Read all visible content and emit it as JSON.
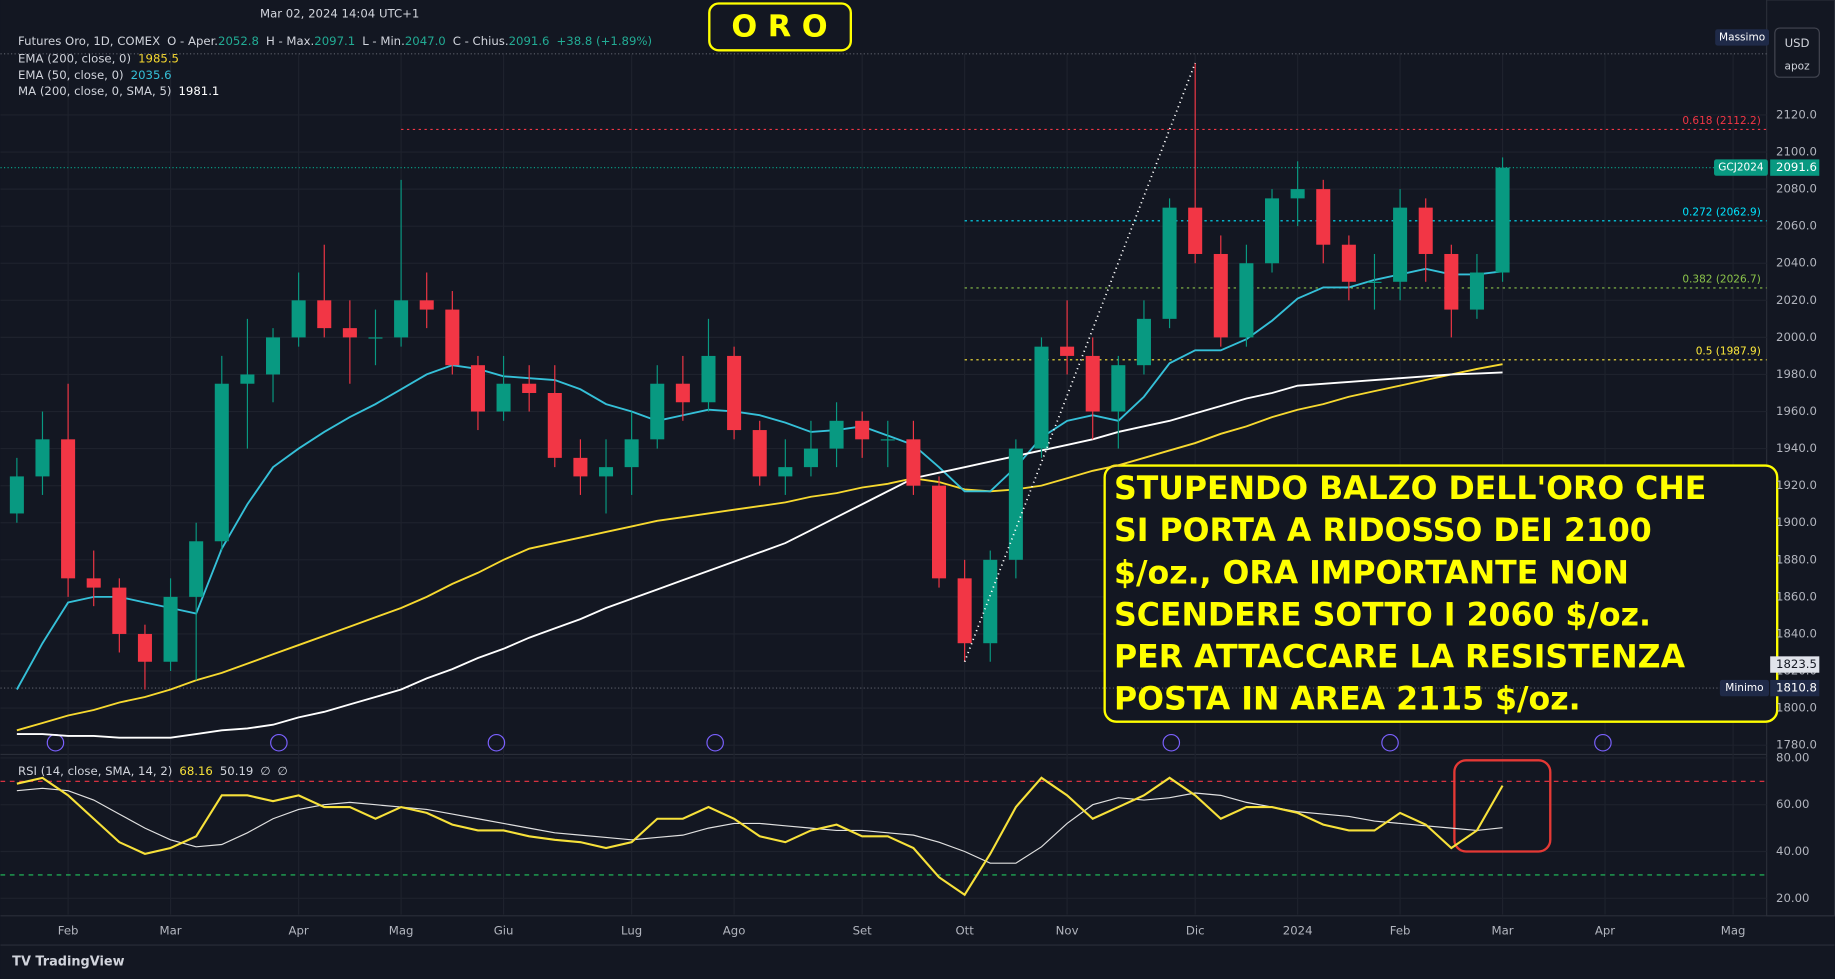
{
  "header": {
    "datetime": "Mar 02, 2024 14:04 UTC+1",
    "symbol": "Futures Oro, 1D, COMEX",
    "o_label": "O - Aper.",
    "open_value": "2052.8",
    "h_label": "H - Max.",
    "high_value": "2097.1",
    "l_label": "L - Min.",
    "low_value": "2047.0",
    "c_label": "C - Chius.",
    "close_value": "2091.6",
    "change": "+38.8 (+1.89%)",
    "currency": "USD",
    "user": "apoz",
    "brand": "TradingView"
  },
  "chart_data": [
    {
      "type": "candlestick",
      "title": "O R O",
      "categories": [
        null,
        null,
        "Feb",
        null,
        null,
        null,
        "Mar",
        null,
        null,
        null,
        null,
        "Apr",
        null,
        null,
        null,
        "Mag",
        null,
        null,
        null,
        "Giu",
        null,
        null,
        null,
        null,
        "Lug",
        null,
        null,
        null,
        "Ago",
        null,
        null,
        null,
        null,
        "Set",
        null,
        null,
        null,
        "Ott",
        null,
        null,
        null,
        "Nov",
        null,
        null,
        null,
        null,
        "Dic",
        null,
        null,
        null,
        "2024",
        null,
        null,
        null,
        "Feb",
        null,
        null,
        null,
        "Mar",
        null,
        null,
        null,
        "Apr",
        null,
        null,
        null,
        null,
        "Mag",
        null
      ],
      "open": [
        1905,
        1925,
        1945,
        1870,
        1865,
        1840,
        1825,
        1860,
        1890,
        1975,
        1980,
        2000,
        2020,
        2005,
        2000,
        2000,
        2020,
        2015,
        1985,
        1960,
        1975,
        1970,
        1935,
        1925,
        1930,
        1945,
        1975,
        1965,
        1990,
        1950,
        1925,
        1930,
        1940,
        1955,
        1945,
        1945,
        1920,
        1870,
        1835,
        1880,
        1940,
        1995,
        1990,
        1960,
        1985,
        2010,
        2070,
        2045,
        2000,
        2040,
        2075,
        2080,
        2050,
        2030,
        2030,
        2070,
        2045,
        2015,
        2035,
        null,
        null,
        null,
        null,
        null,
        null,
        null,
        null,
        null,
        null
      ],
      "high": [
        1935,
        1960,
        1975,
        1885,
        1870,
        1845,
        1870,
        1900,
        1990,
        2010,
        2005,
        2035,
        2050,
        2020,
        2015,
        2085,
        2035,
        2025,
        1990,
        1990,
        1985,
        1985,
        1945,
        1945,
        1960,
        1985,
        1990,
        2010,
        1995,
        1955,
        1945,
        1955,
        1965,
        1960,
        1955,
        1955,
        1925,
        1880,
        1885,
        1945,
        2000,
        2020,
        2000,
        1990,
        2020,
        2075,
        2148,
        2055,
        2050,
        2080,
        2095,
        2085,
        2055,
        2045,
        2080,
        2075,
        2050,
        2045,
        2097.1,
        null,
        null,
        null,
        null,
        null,
        null,
        null,
        null,
        null,
        null
      ],
      "low": [
        1900,
        1915,
        1860,
        1855,
        1830,
        1810,
        1820,
        1815,
        1885,
        1940,
        1965,
        1995,
        2000,
        1975,
        1985,
        1995,
        2005,
        1980,
        1950,
        1955,
        1960,
        1930,
        1915,
        1905,
        1915,
        1940,
        1955,
        1960,
        1945,
        1920,
        1915,
        1925,
        1930,
        1935,
        1930,
        1915,
        1865,
        1825,
        1825,
        1870,
        1935,
        1980,
        1945,
        1940,
        1980,
        2005,
        2040,
        1995,
        1995,
        2035,
        2060,
        2040,
        2020,
        2015,
        2020,
        2030,
        2000,
        2010,
        2030,
        null,
        null,
        null,
        null,
        null,
        null,
        null,
        null,
        null,
        null
      ],
      "close": [
        1925,
        1945,
        1870,
        1865,
        1840,
        1825,
        1860,
        1890,
        1975,
        1980,
        2000,
        2020,
        2005,
        2000,
        2000,
        2020,
        2015,
        1985,
        1960,
        1975,
        1970,
        1935,
        1925,
        1930,
        1945,
        1975,
        1965,
        1990,
        1950,
        1925,
        1930,
        1940,
        1955,
        1945,
        1945,
        1920,
        1870,
        1835,
        1880,
        1940,
        1995,
        1990,
        1960,
        1985,
        2010,
        2070,
        2045,
        2000,
        2040,
        2075,
        2080,
        2050,
        2030,
        2030,
        2070,
        2045,
        2015,
        2035,
        2091.6,
        null,
        null,
        null,
        null,
        null,
        null,
        null,
        null,
        null,
        null
      ],
      "up_color": "#089981",
      "down_color": "#f23645",
      "series": [
        {
          "name": "EMA (200, close, 0)",
          "last": "1985.5",
          "color": "#f7d92f",
          "values": [
            1788,
            1792,
            1796,
            1799,
            1803,
            1806,
            1810,
            1815,
            1819,
            1824,
            1829,
            1834,
            1839,
            1844,
            1849,
            1854,
            1860,
            1867,
            1873,
            1880,
            1886,
            1889,
            1892,
            1895,
            1898,
            1901,
            1903,
            1905,
            1907,
            1909,
            1911,
            1914,
            1916,
            1919,
            1921,
            1924,
            1922,
            1918,
            1917,
            1918,
            1920,
            1924,
            1928,
            1931,
            1935,
            1939,
            1943,
            1948,
            1952,
            1957,
            1961,
            1964,
            1968,
            1971,
            1974,
            1977,
            1980,
            1983,
            1985.5,
            null,
            null,
            null,
            null,
            null,
            null,
            null,
            null,
            null,
            null
          ]
        },
        {
          "name": "EMA (50, close, 0)",
          "last": "2035.6",
          "color": "#35c0d8",
          "values": [
            1810,
            1835,
            1857,
            1860,
            1860,
            1857,
            1854,
            1851,
            1886,
            1910,
            1930,
            1940,
            1949,
            1957,
            1964,
            1972,
            1980,
            1985,
            1983,
            1979,
            1978,
            1977,
            1972,
            1964,
            1960,
            1955,
            1958,
            1961,
            1960,
            1958,
            1954,
            1949,
            1950,
            1952,
            1947,
            1942,
            1930,
            1917,
            1917,
            1930,
            1946,
            1955,
            1958,
            1955,
            1968,
            1986,
            1993,
            1993,
            1999,
            2009,
            2021,
            2027,
            2027,
            2031,
            2034,
            2037,
            2034,
            2034,
            2035.6,
            null,
            null,
            null,
            null,
            null,
            null,
            null,
            null,
            null,
            null
          ]
        },
        {
          "name": "MA (200, close, 0, SMA, 5)",
          "last": "1981.1",
          "color": "#ffffff",
          "values": [
            1786,
            1786,
            1785,
            1785,
            1784,
            1784,
            1784,
            1786,
            1788,
            1789,
            1791,
            1795,
            1798,
            1802,
            1806,
            1810,
            1816,
            1821,
            1827,
            1832,
            1838,
            1843,
            1848,
            1854,
            1859,
            1864,
            1869,
            1874,
            1879,
            1884,
            1889,
            1896,
            1903,
            1910,
            1917,
            1924,
            1927,
            1930,
            1933,
            1936,
            1939,
            1942,
            1945,
            1949,
            1952,
            1955,
            1959,
            1963,
            1967,
            1970,
            1974,
            1975,
            1976,
            1977,
            1978,
            1979,
            1980,
            1980.5,
            1981.1,
            null,
            null,
            null,
            null,
            null,
            null,
            null,
            null,
            null,
            null
          ]
        }
      ],
      "ylim": [
        1775,
        2153
      ],
      "yticks": [
        {
          "value": 1780,
          "label": "1780.0"
        },
        {
          "value": 1800,
          "label": "1800.0"
        },
        {
          "value": 1820,
          "label": "1820.0"
        },
        {
          "value": 1840,
          "label": "1840.0"
        },
        {
          "value": 1860,
          "label": "1860.0"
        },
        {
          "value": 1880,
          "label": "1880.0"
        },
        {
          "value": 1900,
          "label": "1900.0"
        },
        {
          "value": 1920,
          "label": "1920.0"
        },
        {
          "value": 1940,
          "label": "1940.0"
        },
        {
          "value": 1960,
          "label": "1960.0"
        },
        {
          "value": 1980,
          "label": "1980.0"
        },
        {
          "value": 2000,
          "label": "2000.0"
        },
        {
          "value": 2020,
          "label": "2020.0"
        },
        {
          "value": 2040,
          "label": "2040.0"
        },
        {
          "value": 2060,
          "label": "2060.0"
        },
        {
          "value": 2080,
          "label": "2080.0"
        },
        {
          "value": 2100,
          "label": "2100.0"
        },
        {
          "value": 2120,
          "label": "2120.0"
        }
      ],
      "fib_levels": [
        {
          "label": "0.618 (2112.2)",
          "value": 2112.2,
          "color": "#f23645"
        },
        {
          "label": "0.272 (2062.9)",
          "value": 2062.9,
          "color": "#00e5ff"
        },
        {
          "label": "0.382 (2026.7)",
          "value": 2026.7,
          "color": "#8bc34a"
        },
        {
          "label": "0.5 (1987.9)",
          "value": 1987.9,
          "color": "#ffeb3b"
        }
      ],
      "price_tags": {
        "max_label": "Massimo",
        "min_label": "Minimo",
        "min_value": {
          "value": 1810.8,
          "label": "1810.8"
        },
        "symbol": "GCJ2024",
        "last": {
          "value": 2091.6,
          "label": "2091.6"
        },
        "cursor": {
          "value": 1823.5,
          "label": "1823.5"
        }
      },
      "annotation_lines": [
        "STUPENDO BALZO DELL'ORO CHE",
        "SI PORTA A RIDOSSO DEI 2100",
        "$/oz., ORA IMPORTANTE NON",
        "SCENDERE SOTTO I 2060 $/oz.",
        "PER ATTACCARE LA RESISTENZA",
        "POSTA IN AREA 2115 $/oz."
      ]
    },
    {
      "type": "line",
      "name": "RSI (14, close, SMA, 14, 2)",
      "legend_values": [
        "68.16",
        "50.19",
        "∅",
        "∅"
      ],
      "series": [
        {
          "name": "RSI",
          "color": "#f7e13a",
          "values": [
            69,
            71.5,
            64,
            54,
            44,
            39,
            41.5,
            46.5,
            64,
            64,
            61.5,
            64,
            59,
            59,
            54,
            59,
            56.5,
            51.5,
            49,
            49,
            46.5,
            45,
            44,
            41.5,
            44,
            54,
            54,
            59,
            54,
            46.5,
            44,
            49,
            51.5,
            46.5,
            46.5,
            41.5,
            29,
            21.5,
            39,
            59,
            71.5,
            64,
            54,
            59,
            64,
            71.5,
            64,
            54,
            59,
            59,
            56.5,
            51.5,
            49,
            49,
            56.5,
            51.5,
            41.5,
            49,
            68.16,
            null,
            null,
            null,
            null,
            null,
            null,
            null,
            null,
            null,
            null
          ]
        },
        {
          "name": "RSI MA",
          "color": "#e0e0e0",
          "values": [
            66,
            67,
            66,
            62,
            56,
            50,
            45,
            42,
            43,
            48,
            54,
            58,
            60,
            61,
            60,
            59,
            58,
            56,
            54,
            52,
            50,
            48,
            47,
            46,
            45,
            46,
            47,
            50,
            52,
            52,
            51,
            50,
            49,
            49,
            48,
            47,
            44,
            40,
            35,
            35,
            42,
            52,
            60,
            63,
            62,
            63,
            65,
            64,
            61,
            59,
            57,
            56,
            55,
            53,
            52,
            51,
            50,
            49,
            50.19,
            null,
            null,
            null,
            null,
            null,
            null,
            null,
            null,
            null,
            null
          ]
        }
      ],
      "ylim": [
        13,
        81
      ],
      "yticks": [
        {
          "value": 20,
          "label": "20.00"
        },
        {
          "value": 40,
          "label": "40.00"
        },
        {
          "value": 60,
          "label": "60.00"
        },
        {
          "value": 80,
          "label": "80.00"
        }
      ],
      "bands": [
        {
          "value": 70,
          "color": "#f23645"
        },
        {
          "value": 30,
          "color": "#22c55e"
        }
      ]
    }
  ]
}
